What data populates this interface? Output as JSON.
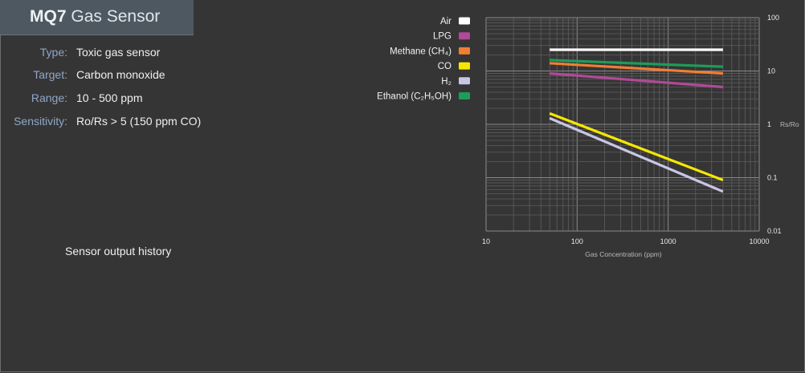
{
  "header": {
    "title_bold": "MQ7",
    "title_light": "Gas Sensor"
  },
  "specs": [
    {
      "label": "Type:",
      "value": "Toxic gas sensor"
    },
    {
      "label": "Target:",
      "value": "Carbon monoxide"
    },
    {
      "label": "Range:",
      "value": "10 - 500 ppm"
    },
    {
      "label": "Sensitivity:",
      "value": "Ro/Rs > 5 (150 ppm CO)"
    }
  ],
  "history": {
    "label": "Sensor output history"
  },
  "chart_data": {
    "type": "line",
    "x_scale": "log",
    "y_scale": "log",
    "xlim": [
      10,
      10000
    ],
    "ylim": [
      0.01,
      100
    ],
    "xlabel": "Gas Concentration (ppm)",
    "ylabel": "Rs/Ro",
    "x_ticks": [
      "10",
      "100",
      "1000",
      "10000"
    ],
    "y_ticks": [
      "100",
      "10",
      "1",
      "0.1",
      "0.01"
    ],
    "grid": true,
    "legend_position": "top-left",
    "series": [
      {
        "name": "Air",
        "color": "#ffffff",
        "x": [
          50,
          4000
        ],
        "y": [
          25,
          25
        ]
      },
      {
        "name": "LPG",
        "color": "#b04a97",
        "x": [
          50,
          4000
        ],
        "y": [
          9,
          5
        ]
      },
      {
        "name": "Methane (CH₄)",
        "color": "#ef7f32",
        "x": [
          50,
          4000
        ],
        "y": [
          14,
          9
        ]
      },
      {
        "name": "CO",
        "color": "#f5e800",
        "x": [
          50,
          4000
        ],
        "y": [
          1.6,
          0.09
        ]
      },
      {
        "name": "H₂",
        "color": "#c9c6e4",
        "x": [
          50,
          4000
        ],
        "y": [
          1.3,
          0.055
        ]
      },
      {
        "name": "Ethanol (C₂H₅OH)",
        "color": "#1e9c5a",
        "x": [
          50,
          4000
        ],
        "y": [
          16,
          12
        ]
      }
    ]
  }
}
